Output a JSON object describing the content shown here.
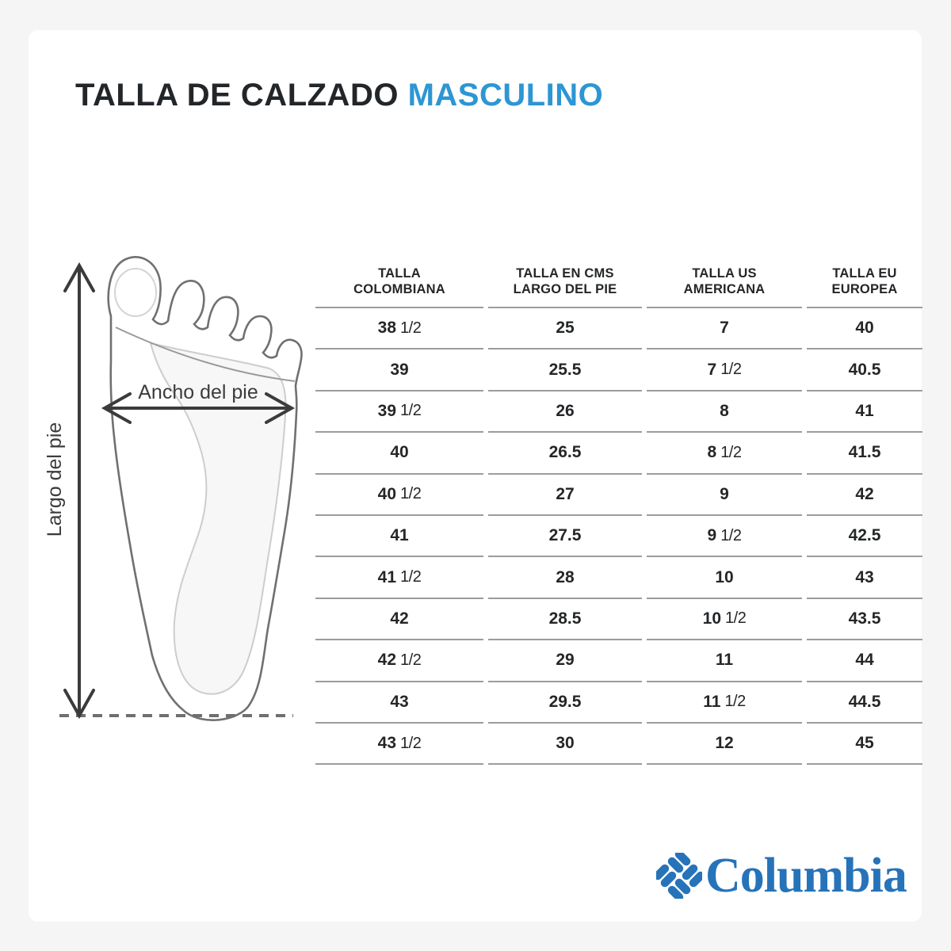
{
  "title": {
    "main": "TALLA DE CALZADO",
    "accent": "MASCULINO",
    "accent_color": "#2d96d3"
  },
  "diagram": {
    "length_label": "Largo del pie",
    "width_label": "Ancho del pie"
  },
  "table": {
    "columns": [
      "TALLA\nCOLOMBIANA",
      "TALLA EN CMS\nLARGO DEL PIE",
      "TALLA US\nAMERICANA",
      "TALLA EU\nEUROPEA"
    ],
    "rows": [
      [
        "38 1/2",
        "25",
        "7",
        "40"
      ],
      [
        "39",
        "25.5",
        "7 1/2",
        "40.5"
      ],
      [
        "39 1/2",
        "26",
        "8",
        "41"
      ],
      [
        "40",
        "26.5",
        "8 1/2",
        "41.5"
      ],
      [
        "40 1/2",
        "27",
        "9",
        "42"
      ],
      [
        "41",
        "27.5",
        "9 1/2",
        "42.5"
      ],
      [
        "41 1/2",
        "28",
        "10",
        "43"
      ],
      [
        "42",
        "28.5",
        "10 1/2",
        "43.5"
      ],
      [
        "42 1/2",
        "29",
        "11",
        "44"
      ],
      [
        "43",
        "29.5",
        "11 1/2",
        "44.5"
      ],
      [
        "43 1/2",
        "30",
        "12",
        "45"
      ]
    ]
  },
  "chart_data": {
    "type": "table",
    "title": "TALLA DE CALZADO MASCULINO",
    "columns": [
      "TALLA COLOMBIANA",
      "TALLA EN CMS LARGO DEL PIE",
      "TALLA US AMERICANA",
      "TALLA EU EUROPEA"
    ],
    "rows": [
      [
        "38 1/2",
        "25",
        "7",
        "40"
      ],
      [
        "39",
        "25.5",
        "7 1/2",
        "40.5"
      ],
      [
        "39 1/2",
        "26",
        "8",
        "41"
      ],
      [
        "40",
        "26.5",
        "8 1/2",
        "41.5"
      ],
      [
        "40 1/2",
        "27",
        "9",
        "42"
      ],
      [
        "41",
        "27.5",
        "9 1/2",
        "42.5"
      ],
      [
        "41 1/2",
        "28",
        "10",
        "43"
      ],
      [
        "42",
        "28.5",
        "10 1/2",
        "43.5"
      ],
      [
        "42 1/2",
        "29",
        "11",
        "44"
      ],
      [
        "43",
        "29.5",
        "11 1/2",
        "44.5"
      ],
      [
        "43 1/2",
        "30",
        "12",
        "45"
      ]
    ]
  },
  "brand": {
    "name": "Columbia",
    "color": "#2673b9"
  }
}
